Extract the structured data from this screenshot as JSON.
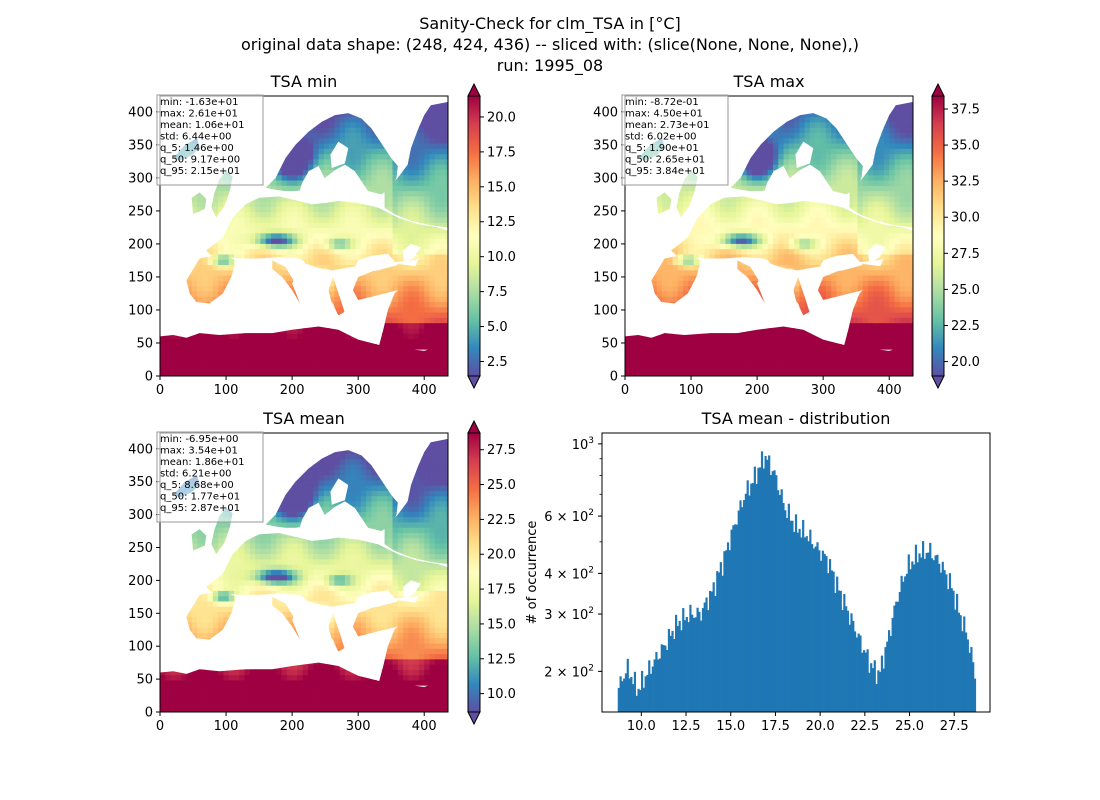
{
  "figure": {
    "title_lines": [
      "Sanity-Check for clm_TSA in [°C]",
      "original data shape: (248, 424, 436) -- sliced with: (slice(None, None, None),)",
      "run: 1995_08"
    ]
  },
  "chart_data": [
    {
      "type": "heatmap",
      "title": "TSA min",
      "xlim": [
        0,
        436
      ],
      "ylim": [
        0,
        424
      ],
      "xticks": [
        "0",
        "100",
        "200",
        "300",
        "400"
      ],
      "yticks": [
        "0",
        "50",
        "100",
        "150",
        "200",
        "250",
        "300",
        "350",
        "400"
      ],
      "colorbar": {
        "range": [
          1.46,
          21.5
        ],
        "ticks": [
          "2.5",
          "5.0",
          "7.5",
          "10.0",
          "12.5",
          "15.0",
          "17.5",
          "20.0"
        ],
        "colormap": "Spectral_r"
      },
      "stats": [
        "min: -1.63e+01",
        "max: 2.61e+01",
        "mean: 1.06e+01",
        "std: 6.44e+00",
        "q_5: 1.46e+00",
        "q_50: 9.17e+00",
        "q_95: 2.15e+01"
      ]
    },
    {
      "type": "heatmap",
      "title": "TSA max",
      "xlim": [
        0,
        436
      ],
      "ylim": [
        0,
        424
      ],
      "xticks": [
        "0",
        "100",
        "200",
        "300",
        "400"
      ],
      "yticks": [
        "0",
        "50",
        "100",
        "150",
        "200",
        "250",
        "300",
        "350",
        "400"
      ],
      "colorbar": {
        "range": [
          19.0,
          38.4
        ],
        "ticks": [
          "20.0",
          "22.5",
          "25.0",
          "27.5",
          "30.0",
          "32.5",
          "35.0",
          "37.5"
        ],
        "colormap": "Spectral_r"
      },
      "stats": [
        "min: -8.72e-01",
        "max: 4.50e+01",
        "mean: 2.73e+01",
        "std: 6.02e+00",
        "q_5: 1.90e+01",
        "q_50: 2.65e+01",
        "q_95: 3.84e+01"
      ]
    },
    {
      "type": "heatmap",
      "title": "TSA mean",
      "xlim": [
        0,
        436
      ],
      "ylim": [
        0,
        424
      ],
      "xticks": [
        "0",
        "100",
        "200",
        "300",
        "400"
      ],
      "yticks": [
        "0",
        "50",
        "100",
        "150",
        "200",
        "250",
        "300",
        "350",
        "400"
      ],
      "colorbar": {
        "range": [
          8.68,
          28.7
        ],
        "ticks": [
          "10.0",
          "12.5",
          "15.0",
          "17.5",
          "20.0",
          "22.5",
          "25.0",
          "27.5"
        ],
        "colormap": "Spectral_r"
      },
      "stats": [
        "min: -6.95e+00",
        "max: 3.54e+01",
        "mean: 1.86e+01",
        "std: 6.21e+00",
        "q_5: 8.68e+00",
        "q_50: 1.77e+01",
        "q_95: 2.87e+01"
      ]
    },
    {
      "type": "bar",
      "title": "TSA mean - distribution",
      "ylabel": "# of occurrence",
      "yscale": "log",
      "xlim": [
        7.8,
        29.5
      ],
      "ylim": [
        150,
        1080
      ],
      "xticks": [
        "10.0",
        "12.5",
        "15.0",
        "17.5",
        "20.0",
        "22.5",
        "25.0",
        "27.5"
      ],
      "yticks": [
        {
          "value": 1000,
          "base": "10",
          "exp": "3"
        },
        {
          "value": 600,
          "base": "6 × 10",
          "exp": "2"
        },
        {
          "value": 400,
          "base": "4 × 10",
          "exp": "2"
        },
        {
          "value": 300,
          "base": "3 × 10",
          "exp": "2"
        },
        {
          "value": 200,
          "base": "2 × 10",
          "exp": "2"
        }
      ],
      "color": "#1f77b4",
      "bin_range": [
        8.68,
        28.7
      ],
      "profile": [
        [
          8.68,
          175
        ],
        [
          9.2,
          205
        ],
        [
          9.8,
          175
        ],
        [
          10.5,
          205
        ],
        [
          11.3,
          240
        ],
        [
          12.0,
          280
        ],
        [
          12.7,
          300
        ],
        [
          13.3,
          300
        ],
        [
          14.0,
          355
        ],
        [
          14.6,
          440
        ],
        [
          15.2,
          560
        ],
        [
          15.8,
          700
        ],
        [
          16.3,
          780
        ],
        [
          16.9,
          920
        ],
        [
          17.4,
          820
        ],
        [
          18.0,
          640
        ],
        [
          18.6,
          560
        ],
        [
          19.2,
          530
        ],
        [
          19.8,
          480
        ],
        [
          20.4,
          440
        ],
        [
          21.0,
          360
        ],
        [
          21.6,
          300
        ],
        [
          22.2,
          250
        ],
        [
          22.8,
          210
        ],
        [
          23.3,
          195
        ],
        [
          23.8,
          250
        ],
        [
          24.4,
          350
        ],
        [
          24.9,
          420
        ],
        [
          25.5,
          460
        ],
        [
          26.1,
          470
        ],
        [
          26.7,
          430
        ],
        [
          27.3,
          370
        ],
        [
          27.8,
          300
        ],
        [
          28.2,
          260
        ],
        [
          28.7,
          190
        ]
      ]
    }
  ]
}
